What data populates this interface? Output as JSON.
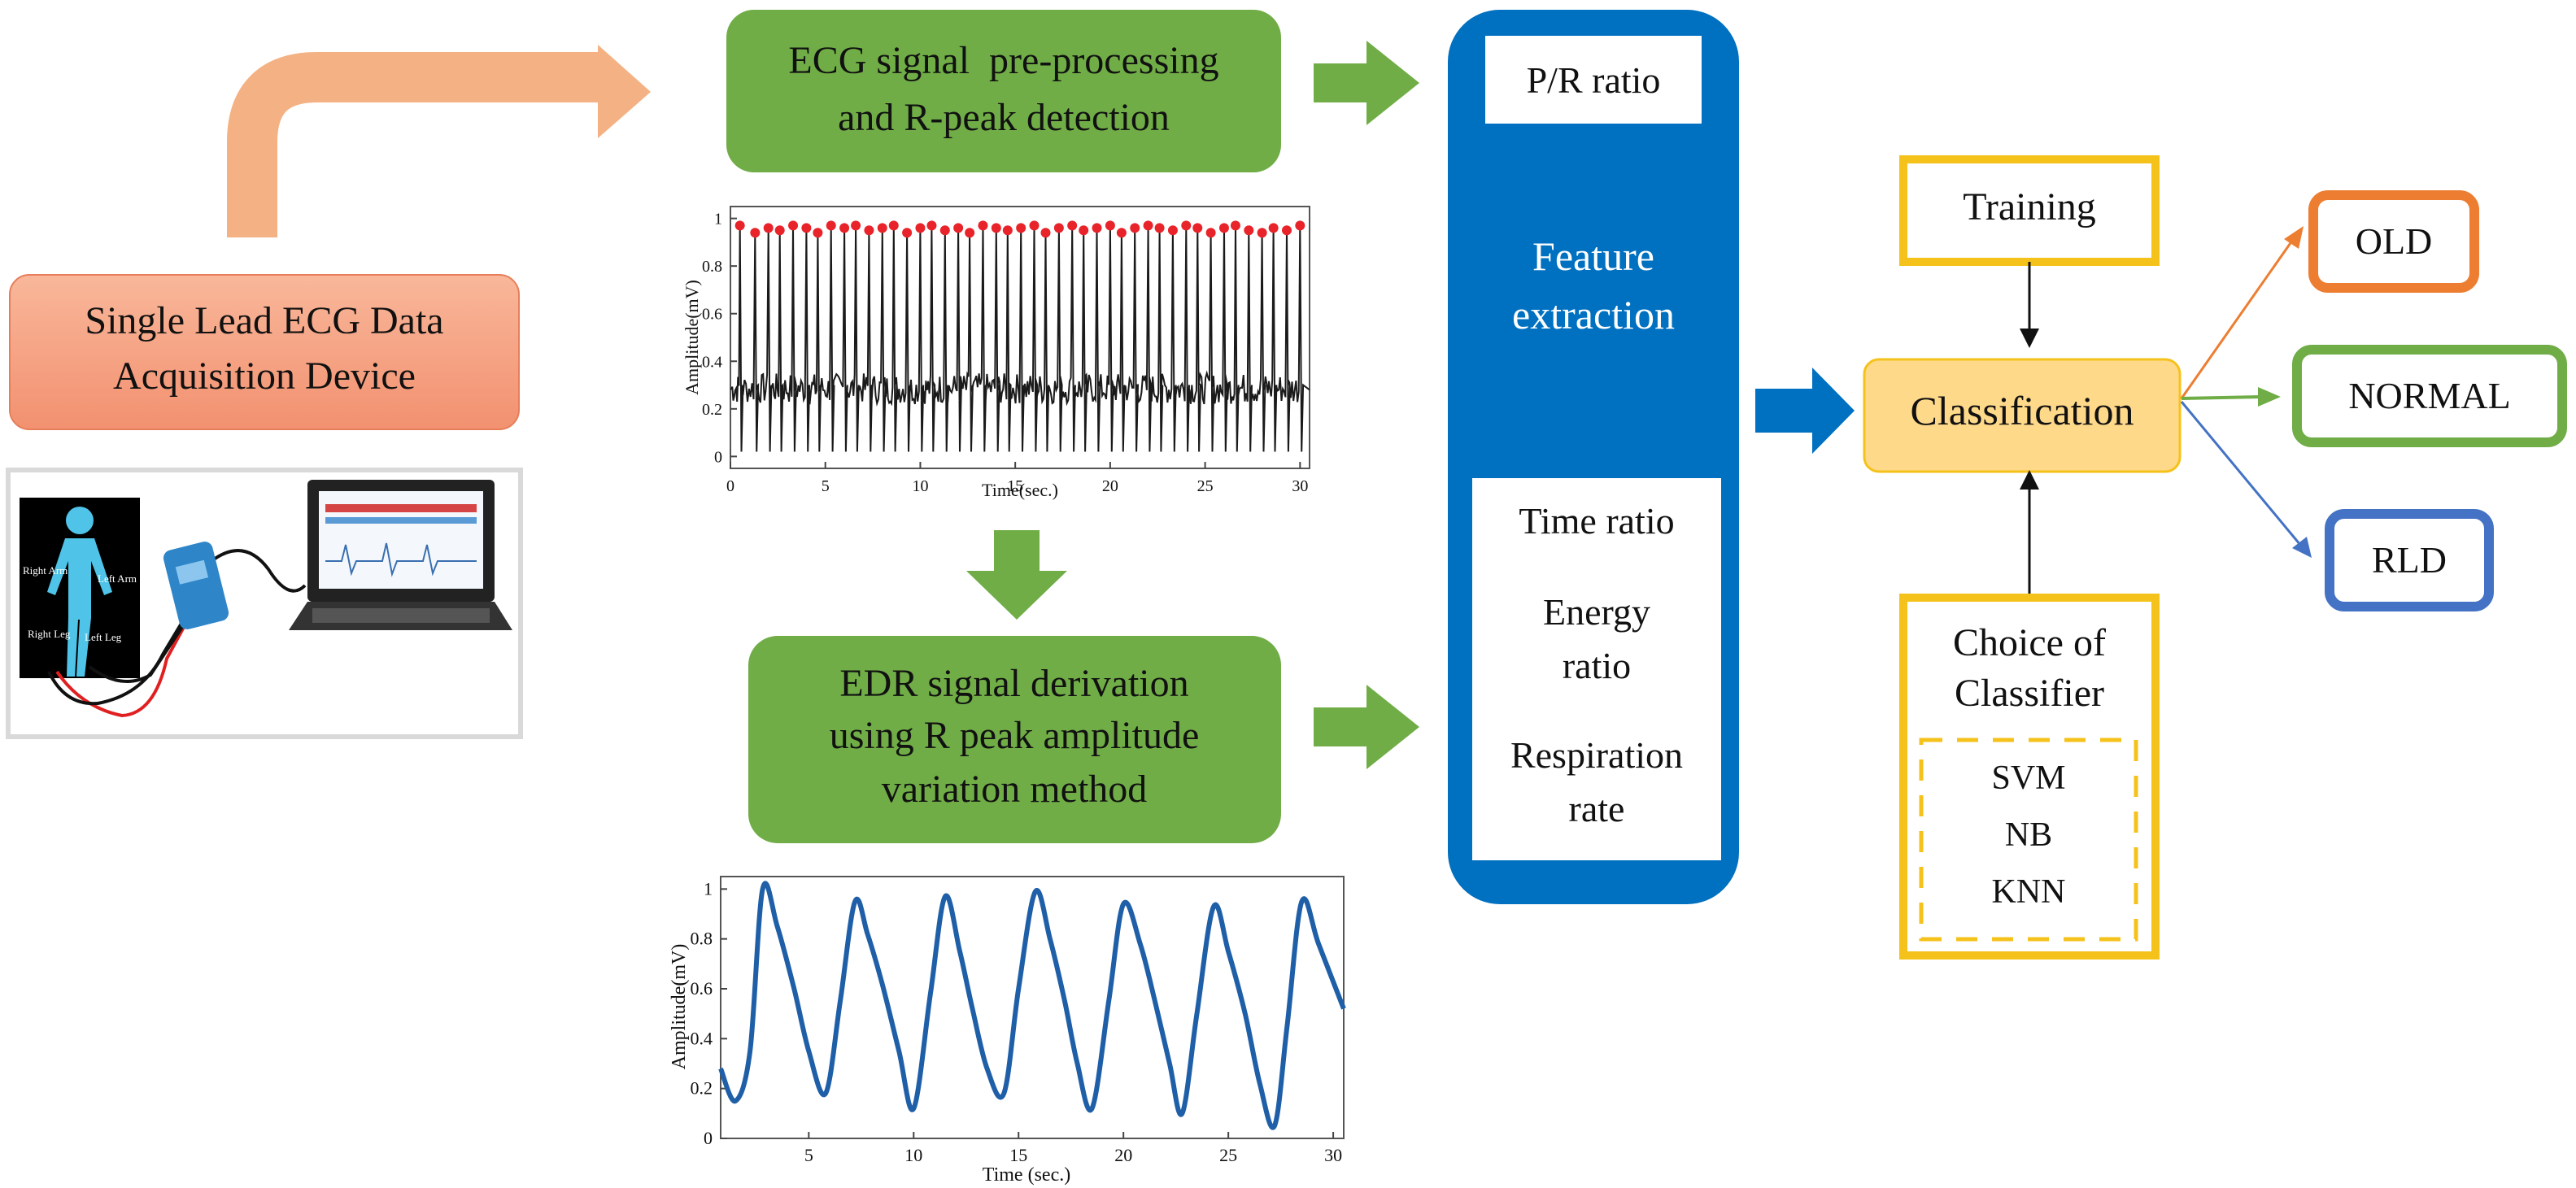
{
  "acquisition": {
    "title_line1": "Single Lead ECG Data",
    "title_line2": "Acquisition Device",
    "body_labels": [
      "Right Arm",
      "Left Arm",
      "Right Leg",
      "Left Leg"
    ]
  },
  "preprocessing": {
    "line1": "ECG signal  pre-processing",
    "line2": "and R-peak detection"
  },
  "edr": {
    "line1": "EDR signal derivation",
    "line2": "using R peak amplitude",
    "line3": "variation method"
  },
  "features": {
    "top_item": "P/R ratio",
    "title_line1": "Feature",
    "title_line2": "extraction",
    "items": [
      [
        "Time ratio"
      ],
      [
        "Energy",
        "ratio"
      ],
      [
        "Respiration",
        "rate"
      ]
    ]
  },
  "classification": {
    "training": "Training",
    "classification": "Classification",
    "choice_line1": "Choice of",
    "choice_line2": "Classifier",
    "classifiers": [
      "SVM",
      "NB",
      "KNN"
    ],
    "outputs": [
      {
        "label": "OLD",
        "color": "#ED7D31"
      },
      {
        "label": "NORMAL",
        "color": "#70AD47"
      },
      {
        "label": "RLD",
        "color": "#4472C4"
      }
    ]
  },
  "colors": {
    "green_box": "#70AD47",
    "blue_panel": "#0070C0",
    "salmon": "#F4A582",
    "salmon_box": "#F8A888",
    "orange_arrow": "#F4B183",
    "gold": "#F5C21B",
    "class_fill": "#FFD98A",
    "series": "#1F5FA8",
    "peak": "#E8232A"
  },
  "chart_data": [
    {
      "type": "line",
      "xlabel": "Time(sec.)",
      "ylabel": "Amplitude(mV)",
      "xlim": [
        0,
        30.5
      ],
      "ylim": [
        -0.05,
        1.05
      ],
      "xticks": [
        0,
        5,
        10,
        15,
        20,
        25,
        30
      ],
      "yticks": [
        0,
        0.2,
        0.4,
        0.6,
        0.8,
        1
      ],
      "series": [
        {
          "baseline_range": [
            0.22,
            0.35
          ],
          "r_peaks_x": [
            0.5,
            1.3,
            2.0,
            2.6,
            3.3,
            4.0,
            4.6,
            5.3,
            6.0,
            6.6,
            7.3,
            8.0,
            8.6,
            9.3,
            10.0,
            10.6,
            11.3,
            12.0,
            12.6,
            13.3,
            14.0,
            14.6,
            15.3,
            16.0,
            16.6,
            17.3,
            18.0,
            18.6,
            19.3,
            20.0,
            20.6,
            21.3,
            22.0,
            22.6,
            23.3,
            24.0,
            24.6,
            25.3,
            26.0,
            26.6,
            27.3,
            28.0,
            28.6,
            29.3,
            30.0
          ],
          "r_peaks_y": [
            0.97,
            0.94,
            0.96,
            0.95,
            0.97,
            0.96,
            0.94,
            0.97,
            0.96,
            0.97,
            0.95,
            0.96,
            0.97,
            0.94,
            0.96,
            0.97,
            0.95,
            0.96,
            0.94,
            0.97,
            0.96,
            0.95,
            0.96,
            0.97,
            0.94,
            0.96,
            0.97,
            0.95,
            0.96,
            0.97,
            0.94,
            0.96,
            0.97,
            0.96,
            0.95,
            0.97,
            0.96,
            0.94,
            0.96,
            0.97,
            0.95,
            0.94,
            0.96,
            0.95,
            0.97
          ]
        }
      ]
    },
    {
      "type": "line",
      "xlabel": "Time (sec.)",
      "ylabel": "Amplitude(mV)",
      "xlim": [
        0.8,
        30.5
      ],
      "ylim": [
        0,
        1.05
      ],
      "xticks": [
        5,
        10,
        15,
        20,
        25,
        30
      ],
      "yticks": [
        0,
        0.2,
        0.4,
        0.6,
        0.8,
        1
      ],
      "series": [
        {
          "x": [
            0.8,
            1.5,
            2.2,
            2.8,
            3.5,
            4.3,
            5.0,
            5.8,
            6.5,
            7.2,
            7.8,
            8.5,
            9.3,
            10.0,
            10.8,
            11.5,
            12.2,
            12.8,
            13.5,
            14.3,
            15.0,
            15.8,
            16.5,
            17.2,
            17.8,
            18.5,
            19.3,
            20.0,
            20.8,
            21.5,
            22.2,
            22.8,
            23.5,
            24.3,
            25.0,
            25.8,
            26.5,
            27.2,
            27.8,
            28.5,
            29.3,
            30.5
          ],
          "y": [
            0.28,
            0.15,
            0.35,
            1.0,
            0.85,
            0.6,
            0.35,
            0.18,
            0.55,
            0.95,
            0.82,
            0.62,
            0.35,
            0.12,
            0.58,
            0.97,
            0.75,
            0.52,
            0.28,
            0.18,
            0.6,
            0.99,
            0.8,
            0.55,
            0.3,
            0.12,
            0.55,
            0.94,
            0.78,
            0.55,
            0.3,
            0.1,
            0.5,
            0.93,
            0.75,
            0.5,
            0.22,
            0.05,
            0.45,
            0.95,
            0.78,
            0.52
          ]
        }
      ]
    }
  ]
}
